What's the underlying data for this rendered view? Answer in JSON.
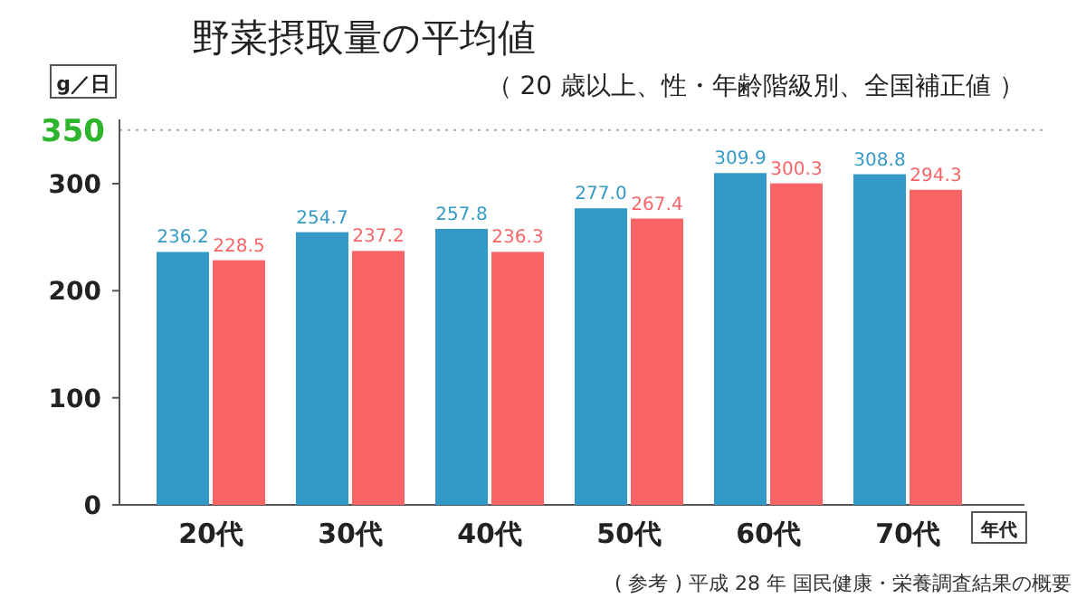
{
  "chart_data": {
    "type": "bar",
    "title": "野菜摂取量の平均値",
    "subtitle": "（ 20 歳以上、性・年齢階級別、全国補正値 ）",
    "ylabel": "g／日",
    "xlabel": "年代",
    "categories": [
      "20代",
      "30代",
      "40代",
      "50代",
      "60代",
      "70代"
    ],
    "series": [
      {
        "color": "#3399c6",
        "values": [
          236.2,
          254.7,
          257.8,
          277.0,
          309.9,
          308.8
        ],
        "value_labels": [
          "236.2",
          "254.7",
          "257.8",
          "277.0",
          "309.9",
          "308.8"
        ]
      },
      {
        "color": "#f96467",
        "values": [
          228.5,
          237.2,
          236.3,
          267.4,
          300.3,
          294.3
        ],
        "value_labels": [
          "228.5",
          "237.2",
          "236.3",
          "267.4",
          "300.3",
          "294.3"
        ]
      }
    ],
    "ylim": [
      0,
      360
    ],
    "yticks": [
      0,
      100,
      200,
      300
    ],
    "ref_lines": [
      {
        "axis": "y",
        "value": 350,
        "label": "350",
        "color": "#aaaaaa",
        "line_style": "dotted"
      }
    ],
    "annotations": [
      "( 参考 ) 平成 28 年 国民健康・栄養調査結果の概要"
    ]
  }
}
